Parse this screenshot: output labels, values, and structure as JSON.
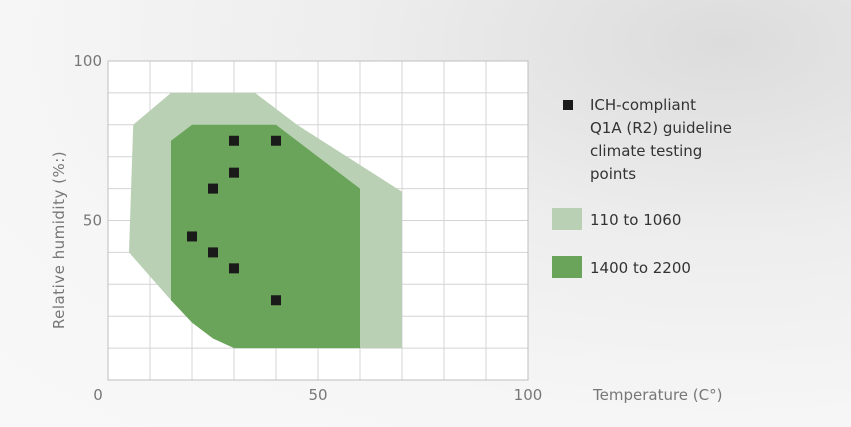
{
  "chart_data": {
    "type": "scatter",
    "xlabel": "Temperature (C°)",
    "ylabel": "Relative humidity (%:)",
    "xlim": [
      0,
      100
    ],
    "ylim": [
      0,
      100
    ],
    "x_ticks": [
      0,
      50,
      100
    ],
    "y_ticks": [
      50,
      100
    ],
    "grid": true,
    "legend_position": "right",
    "series": [
      {
        "name": "ICH-compliant Q1A (R2) guideline climate testing points",
        "kind": "points",
        "color": "#1a1a1a",
        "points": [
          {
            "x": 30,
            "y": 75
          },
          {
            "x": 40,
            "y": 75
          },
          {
            "x": 30,
            "y": 65
          },
          {
            "x": 25,
            "y": 60
          },
          {
            "x": 20,
            "y": 45
          },
          {
            "x": 25,
            "y": 40
          },
          {
            "x": 30,
            "y": 35
          },
          {
            "x": 40,
            "y": 25
          }
        ]
      },
      {
        "name": "110 to 1060",
        "kind": "region",
        "color": "#b9d0b4",
        "polygon": [
          {
            "x": 15,
            "y": 90
          },
          {
            "x": 35,
            "y": 90
          },
          {
            "x": 45,
            "y": 80
          },
          {
            "x": 70,
            "y": 59
          },
          {
            "x": 70,
            "y": 10
          },
          {
            "x": 30,
            "y": 10
          },
          {
            "x": 15,
            "y": 25
          },
          {
            "x": 5,
            "y": 40
          },
          {
            "x": 6,
            "y": 80
          }
        ]
      },
      {
        "name": "1400 to 2200",
        "kind": "region",
        "color": "#6aa45a",
        "polygon": [
          {
            "x": 20,
            "y": 80
          },
          {
            "x": 40,
            "y": 80
          },
          {
            "x": 50,
            "y": 70
          },
          {
            "x": 60,
            "y": 60
          },
          {
            "x": 60,
            "y": 10
          },
          {
            "x": 30,
            "y": 10
          },
          {
            "x": 25,
            "y": 13
          },
          {
            "x": 20,
            "y": 18
          },
          {
            "x": 15,
            "y": 25
          },
          {
            "x": 15,
            "y": 75
          }
        ]
      }
    ]
  }
}
